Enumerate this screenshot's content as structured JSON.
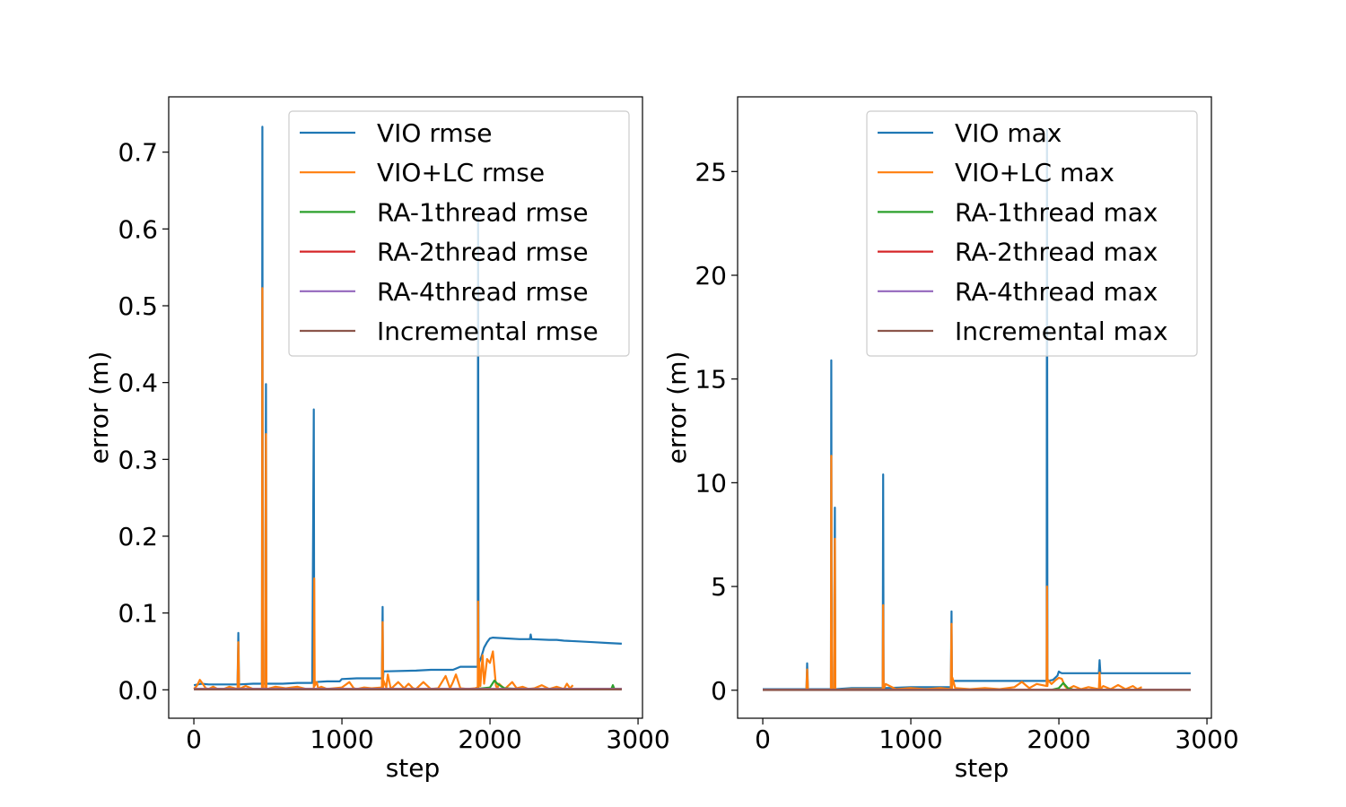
{
  "colors": {
    "vio": "#1f77b4",
    "vio_lc": "#ff7f0e",
    "ra1": "#2ca02c",
    "ra2": "#d62728",
    "ra4": "#9467bd",
    "incremental": "#8c564b"
  },
  "chart_data": [
    {
      "type": "line",
      "xlabel": "step",
      "ylabel": "error (m)",
      "xlim": [
        -170,
        3030
      ],
      "ylim": [
        -0.037,
        0.772
      ],
      "xticks": [
        0,
        1000,
        2000,
        3000
      ],
      "xtick_labels": [
        "0",
        "1000",
        "2000",
        "3000"
      ],
      "yticks": [
        0.0,
        0.1,
        0.2,
        0.3,
        0.4,
        0.5,
        0.6,
        0.7
      ],
      "ytick_labels": [
        "0.0",
        "0.1",
        "0.2",
        "0.3",
        "0.4",
        "0.5",
        "0.6",
        "0.7"
      ],
      "grid": false,
      "legend_position": "top-right",
      "series": [
        {
          "name": "VIO rmse",
          "color_key": "vio",
          "x": [
            0,
            50,
            100,
            200,
            295,
            300,
            305,
            400,
            460,
            463,
            466,
            475,
            480,
            487,
            490,
            493,
            600,
            700,
            800,
            810,
            813,
            816,
            900,
            985,
            1000,
            1100,
            1270,
            1275,
            1278,
            1281,
            1300,
            1500,
            1600,
            1700,
            1750,
            1800,
            1917,
            1920,
            1923,
            1926,
            1940,
            1960,
            1980,
            2000,
            2020,
            2100,
            2200,
            2270,
            2275,
            2280,
            2400,
            2450,
            2500,
            2600,
            2700,
            2800,
            2890
          ],
          "y": [
            0.006,
            0.008,
            0.007,
            0.007,
            0.007,
            0.074,
            0.007,
            0.008,
            0.008,
            0.733,
            0.008,
            0.008,
            0.008,
            0.398,
            0.008,
            0.008,
            0.008,
            0.009,
            0.009,
            0.365,
            0.009,
            0.01,
            0.011,
            0.011,
            0.014,
            0.015,
            0.015,
            0.108,
            0.015,
            0.024,
            0.024,
            0.025,
            0.026,
            0.026,
            0.026,
            0.03,
            0.03,
            0.625,
            0.03,
            0.035,
            0.042,
            0.055,
            0.062,
            0.067,
            0.068,
            0.067,
            0.066,
            0.066,
            0.072,
            0.066,
            0.065,
            0.065,
            0.064,
            0.063,
            0.062,
            0.061,
            0.06
          ]
        },
        {
          "name": "VIO+LC rmse",
          "color_key": "vio_lc",
          "x": [
            0,
            20,
            40,
            60,
            80,
            100,
            130,
            160,
            200,
            240,
            295,
            300,
            305,
            350,
            400,
            460,
            463,
            466,
            475,
            480,
            487,
            490,
            493,
            550,
            620,
            700,
            760,
            810,
            813,
            816,
            830,
            840,
            860,
            900,
            1000,
            1050,
            1080,
            1100,
            1150,
            1200,
            1270,
            1275,
            1278,
            1281,
            1300,
            1310,
            1330,
            1380,
            1420,
            1450,
            1480,
            1500,
            1550,
            1600,
            1650,
            1700,
            1730,
            1750,
            1770,
            1800,
            1850,
            1900,
            1917,
            1920,
            1923,
            1926,
            1935,
            1950,
            1960,
            1980,
            2000,
            2020,
            2040,
            2050,
            2060,
            2100,
            2150,
            2180,
            2220,
            2260,
            2300,
            2350,
            2400,
            2450,
            2500,
            2520,
            2540,
            2560
          ],
          "y": [
            0.001,
            0.005,
            0.013,
            0.008,
            0.002,
            0.001,
            0.004,
            0.001,
            0.001,
            0.004,
            0.001,
            0.062,
            0.001,
            0.005,
            0.001,
            0.001,
            0.523,
            0.001,
            0.001,
            0.001,
            0.333,
            0.001,
            0.001,
            0.004,
            0.002,
            0.004,
            0.001,
            0.001,
            0.145,
            0.005,
            0.01,
            0.002,
            0.004,
            0.001,
            0.003,
            0.01,
            0.002,
            0.001,
            0.003,
            0.002,
            0.003,
            0.088,
            0.003,
            0.012,
            0.003,
            0.02,
            0.001,
            0.01,
            0.002,
            0.008,
            0.002,
            0.001,
            0.01,
            0.001,
            0.002,
            0.018,
            0.002,
            0.01,
            0.02,
            0.002,
            0.001,
            0.002,
            0.003,
            0.115,
            0.003,
            0.04,
            0.005,
            0.045,
            0.008,
            0.04,
            0.035,
            0.05,
            0.005,
            0.002,
            0.008,
            0.001,
            0.01,
            0.002,
            0.004,
            0.001,
            0.002,
            0.006,
            0.001,
            0.004,
            0.001,
            0.008,
            0.002,
            0.006
          ]
        },
        {
          "name": "RA-1thread rmse",
          "color_key": "ra1",
          "x": [
            0,
            1900,
            1950,
            2000,
            2030,
            2050,
            2080,
            2100,
            2200,
            2400,
            2600,
            2820,
            2830,
            2840,
            2890
          ],
          "y": [
            0.001,
            0.001,
            0.002,
            0.003,
            0.012,
            0.008,
            0.004,
            0.002,
            0.001,
            0.001,
            0.001,
            0.001,
            0.006,
            0.001,
            0.001
          ]
        },
        {
          "name": "RA-2thread rmse",
          "color_key": "ra2",
          "x": [
            0,
            2890
          ],
          "y": [
            0.001,
            0.001
          ]
        },
        {
          "name": "RA-4thread rmse",
          "color_key": "ra4",
          "x": [
            0,
            2890
          ],
          "y": [
            0.001,
            0.001
          ]
        },
        {
          "name": "Incremental rmse",
          "color_key": "incremental",
          "x": [
            0,
            2890
          ],
          "y": [
            0.0005,
            0.0005
          ]
        }
      ]
    },
    {
      "type": "line",
      "xlabel": "step",
      "ylabel": "error (m)",
      "xlim": [
        -170,
        3030
      ],
      "ylim": [
        -1.35,
        28.6
      ],
      "xticks": [
        0,
        1000,
        2000,
        3000
      ],
      "xtick_labels": [
        "0",
        "1000",
        "2000",
        "3000"
      ],
      "yticks": [
        0,
        5,
        10,
        15,
        20,
        25
      ],
      "ytick_labels": [
        "0",
        "5",
        "10",
        "15",
        "20",
        "25"
      ],
      "grid": false,
      "legend_position": "top-right",
      "series": [
        {
          "name": "VIO max",
          "color_key": "vio",
          "x": [
            0,
            100,
            200,
            295,
            300,
            305,
            400,
            460,
            463,
            466,
            475,
            480,
            487,
            490,
            493,
            600,
            700,
            810,
            813,
            816,
            900,
            1000,
            1100,
            1270,
            1275,
            1278,
            1281,
            1400,
            1600,
            1800,
            1917,
            1920,
            1923,
            1926,
            1960,
            1990,
            2000,
            2010,
            2020,
            2100,
            2270,
            2275,
            2280,
            2400,
            2600,
            2800,
            2890
          ],
          "y": [
            0.05,
            0.05,
            0.05,
            0.05,
            1.3,
            0.05,
            0.05,
            0.05,
            15.9,
            0.05,
            0.05,
            0.05,
            8.8,
            0.05,
            0.05,
            0.1,
            0.1,
            0.1,
            10.4,
            0.1,
            0.12,
            0.15,
            0.15,
            0.15,
            3.8,
            0.15,
            0.45,
            0.45,
            0.45,
            0.45,
            0.45,
            27.0,
            0.45,
            0.45,
            0.5,
            0.7,
            0.9,
            0.85,
            0.82,
            0.82,
            0.82,
            1.45,
            0.82,
            0.82,
            0.82,
            0.82,
            0.82
          ]
        },
        {
          "name": "VIO+LC max",
          "color_key": "vio_lc",
          "x": [
            0,
            200,
            295,
            300,
            305,
            400,
            460,
            463,
            466,
            475,
            480,
            487,
            490,
            493,
            600,
            700,
            810,
            813,
            816,
            830,
            900,
            1000,
            1100,
            1200,
            1270,
            1275,
            1278,
            1281,
            1300,
            1400,
            1500,
            1600,
            1700,
            1750,
            1800,
            1850,
            1917,
            1920,
            1923,
            1926,
            1950,
            1980,
            2000,
            2020,
            2040,
            2060,
            2100,
            2150,
            2200,
            2270,
            2275,
            2280,
            2300,
            2350,
            2400,
            2450,
            2500,
            2530,
            2560
          ],
          "y": [
            0.02,
            0.02,
            0.02,
            1.0,
            0.02,
            0.02,
            0.02,
            11.3,
            0.02,
            0.02,
            0.02,
            7.3,
            0.02,
            0.02,
            0.05,
            0.05,
            0.05,
            4.1,
            0.05,
            0.3,
            0.05,
            0.1,
            0.05,
            0.1,
            0.05,
            3.2,
            0.05,
            0.6,
            0.1,
            0.05,
            0.1,
            0.05,
            0.15,
            0.4,
            0.1,
            0.3,
            0.2,
            5.0,
            0.2,
            0.5,
            0.3,
            0.5,
            0.6,
            0.55,
            0.2,
            0.05,
            0.2,
            0.05,
            0.15,
            0.05,
            0.85,
            0.05,
            0.2,
            0.05,
            0.25,
            0.05,
            0.2,
            0.05,
            0.15
          ]
        },
        {
          "name": "RA-1thread max",
          "color_key": "ra1",
          "x": [
            0,
            1950,
            2000,
            2030,
            2060,
            2100,
            2890
          ],
          "y": [
            0.02,
            0.02,
            0.1,
            0.35,
            0.1,
            0.02,
            0.02
          ]
        },
        {
          "name": "RA-2thread max",
          "color_key": "ra2",
          "x": [
            0,
            2890
          ],
          "y": [
            0.02,
            0.02
          ]
        },
        {
          "name": "RA-4thread max",
          "color_key": "ra4",
          "x": [
            0,
            2890
          ],
          "y": [
            0.02,
            0.02
          ]
        },
        {
          "name": "Incremental max",
          "color_key": "incremental",
          "x": [
            0,
            2890
          ],
          "y": [
            0.01,
            0.01
          ]
        }
      ]
    }
  ]
}
